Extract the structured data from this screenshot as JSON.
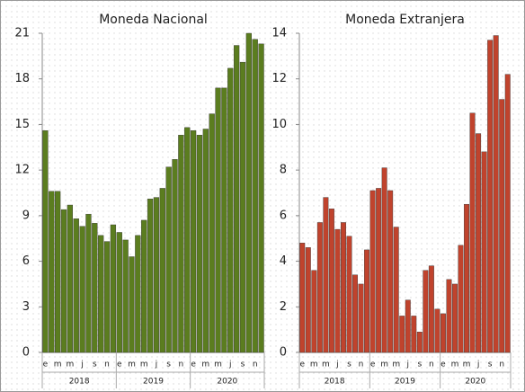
{
  "chart_data": [
    {
      "type": "bar",
      "title": "Moneda Nacional",
      "categories": [
        "e",
        null,
        "m",
        null,
        "m",
        null,
        "j",
        null,
        "s",
        null,
        "n",
        null,
        "e",
        null,
        "m",
        null,
        "m",
        null,
        "j",
        null,
        "s",
        null,
        "n",
        null,
        "e",
        null,
        "m",
        null,
        "m",
        null,
        "j",
        null,
        "s",
        null,
        "n",
        null
      ],
      "years": [
        "2018",
        "2019",
        "2020"
      ],
      "values": [
        14.6,
        10.6,
        10.6,
        9.4,
        9.7,
        8.8,
        8.3,
        9.1,
        8.5,
        7.7,
        7.3,
        8.4,
        7.9,
        7.4,
        6.3,
        7.7,
        8.7,
        10.1,
        10.2,
        10.8,
        12.2,
        12.7,
        14.3,
        14.8,
        14.6,
        14.3,
        14.7,
        15.7,
        17.4,
        17.4,
        18.7,
        20.2,
        19.1,
        21.0,
        20.6,
        20.3
      ],
      "color": "#5b7d1f",
      "ylim": [
        0,
        21
      ],
      "yticks": [
        0,
        3,
        6,
        9,
        12,
        15,
        18,
        21
      ]
    },
    {
      "type": "bar",
      "title": "Moneda Extranjera",
      "categories": [
        "e",
        null,
        "m",
        null,
        "m",
        null,
        "j",
        null,
        "s",
        null,
        "n",
        null,
        "e",
        null,
        "m",
        null,
        "m",
        null,
        "j",
        null,
        "s",
        null,
        "n",
        null,
        "e",
        null,
        "m",
        null,
        "m",
        null,
        "j",
        null,
        "s",
        null,
        "n",
        null
      ],
      "years": [
        "2018",
        "2019",
        "2020"
      ],
      "values": [
        4.8,
        4.6,
        3.6,
        5.7,
        6.8,
        6.3,
        5.4,
        5.7,
        5.1,
        3.4,
        3.0,
        4.5,
        7.1,
        7.2,
        8.1,
        7.1,
        5.5,
        1.6,
        2.3,
        1.6,
        0.9,
        3.6,
        3.8,
        1.9,
        1.7,
        3.2,
        3.0,
        4.7,
        6.5,
        10.5,
        9.6,
        8.8,
        13.7,
        13.9,
        11.1,
        12.2
      ],
      "color": "#c0432d",
      "ylim": [
        0,
        14
      ],
      "yticks": [
        0,
        2,
        4,
        6,
        8,
        10,
        12,
        14
      ]
    }
  ]
}
